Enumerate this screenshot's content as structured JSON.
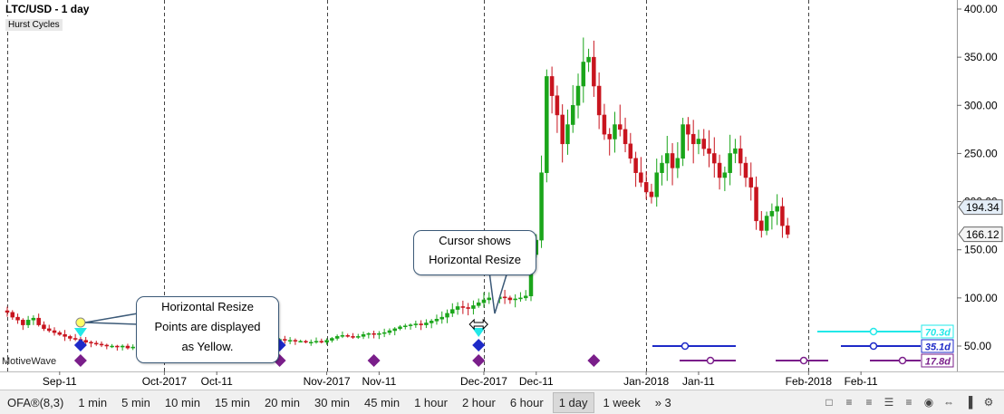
{
  "chart_title": "LTC/USD - 1 day",
  "study_label": "Hurst Cycles",
  "watermark": "MotiveWave",
  "callouts": {
    "cursor": [
      "Cursor shows",
      "Horizontal Resize"
    ],
    "yellow": [
      "Horizontal Resize",
      "Points are displayed",
      "as Yellow."
    ]
  },
  "toolbar": {
    "items": [
      "OFA®(8,3)",
      "1 min",
      "5 min",
      "10 min",
      "15 min",
      "20 min",
      "30 min",
      "45 min",
      "1 hour",
      "2 hour",
      "6 hour",
      "1 day",
      "1 week",
      "» 3"
    ],
    "active": "1 day",
    "right_icons": [
      "clipboard-icon",
      "align-left-icon",
      "align-right-icon",
      "list-icon",
      "bars-icon",
      "visibility-icon",
      "resize-icon",
      "bar-chart-icon",
      "settings-icon"
    ]
  },
  "colors": {
    "up": "#1aa51a",
    "down": "#c8141e",
    "cycle_cyan": "#22e8e8",
    "cycle_blue": "#1e2ac8",
    "cycle_purple": "#7a1e8a"
  },
  "chart_data": {
    "type": "candlestick",
    "symbol": "LTC/USD",
    "interval": "1 day",
    "ylim": [
      30,
      410
    ],
    "y_ticks": [
      400,
      350,
      300,
      250,
      200,
      150,
      100,
      50
    ],
    "y_tick_labels": [
      "400.00",
      "350.00",
      "300.00",
      "250.00",
      "200.00",
      "150.00",
      "100.00",
      "50.00"
    ],
    "price_labels": [
      {
        "value": 194.34,
        "text": "194.34",
        "color": "#e4eef8"
      },
      {
        "value": 166.12,
        "text": "166.12",
        "color": "#f4f4f4"
      }
    ],
    "x_ticks": [
      {
        "label": "Sep-11",
        "day": 10,
        "major": false
      },
      {
        "label": "Oct-2017",
        "day": 30,
        "major": true
      },
      {
        "label": "Oct-11",
        "day": 40,
        "major": false
      },
      {
        "label": "Nov-2017",
        "day": 61,
        "major": true
      },
      {
        "label": "Nov-11",
        "day": 71,
        "major": false
      },
      {
        "label": "Dec-2017",
        "day": 91,
        "major": true
      },
      {
        "label": "Dec-11",
        "day": 101,
        "major": false
      },
      {
        "label": "Jan-2018",
        "day": 122,
        "major": true
      },
      {
        "label": "Jan-11",
        "day": 132,
        "major": false
      },
      {
        "label": "Feb-2018",
        "day": 153,
        "major": true
      },
      {
        "label": "Feb-11",
        "day": 163,
        "major": false
      }
    ],
    "cycle_lines": [
      {
        "label": "70.3d",
        "color": "#22e8e8"
      },
      {
        "label": "35.1d",
        "color": "#1e2ac8"
      },
      {
        "label": "17.8d",
        "color": "#7a1e8a"
      }
    ],
    "cycle_markers": {
      "cyan_days": [
        14,
        90
      ],
      "blue_days": [
        14,
        34,
        52,
        90
      ],
      "purple_days": [
        14,
        52,
        70,
        90,
        112
      ]
    },
    "resize_points": {
      "yellow_day": 14,
      "cursor_day": 90
    },
    "closes": [
      85,
      80,
      77,
      72,
      77,
      79,
      72,
      68,
      66,
      64,
      62,
      60,
      58,
      57,
      56,
      54,
      53,
      52,
      51,
      50,
      50,
      49,
      50,
      48,
      49,
      50,
      50,
      51,
      52,
      51,
      52,
      51,
      52,
      53,
      53,
      54,
      54,
      55,
      55,
      56,
      56,
      57,
      56,
      56,
      55,
      55,
      56,
      56,
      57,
      56,
      55,
      56,
      57,
      56,
      56,
      55,
      55,
      54,
      54,
      55,
      54,
      56,
      58,
      60,
      61,
      60,
      59,
      60,
      62,
      63,
      62,
      63,
      64,
      66,
      68,
      70,
      71,
      72,
      73,
      72,
      74,
      76,
      78,
      80,
      84,
      88,
      91,
      90,
      89,
      92,
      95,
      98,
      100,
      99,
      101,
      100,
      98,
      99,
      100,
      102,
      145,
      160,
      230,
      330,
      310,
      290,
      260,
      280,
      300,
      320,
      345,
      350,
      320,
      290,
      270,
      265,
      280,
      275,
      260,
      245,
      230,
      220,
      210,
      205,
      230,
      240,
      250,
      235,
      245,
      280,
      270,
      260,
      265,
      255,
      250,
      240,
      225,
      230,
      250,
      255,
      240,
      225,
      215,
      180,
      170,
      185,
      190,
      195,
      175,
      166.12
    ]
  }
}
